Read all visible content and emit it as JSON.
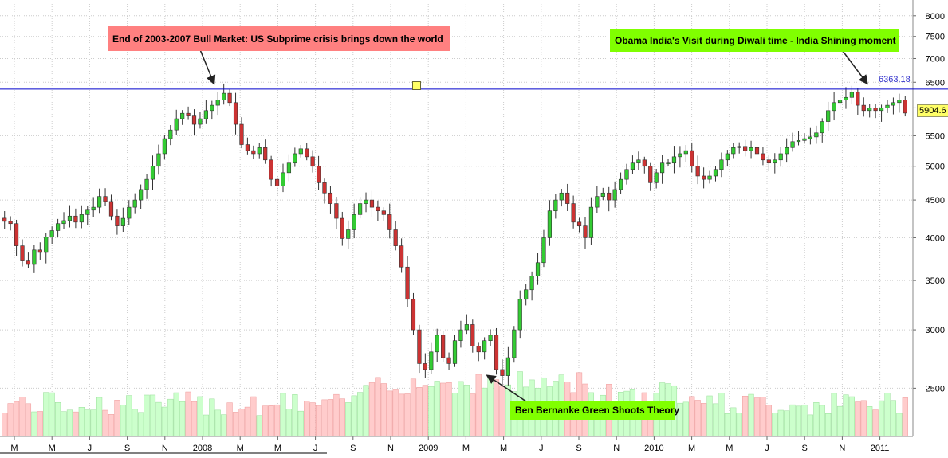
{
  "chart_data": {
    "type": "candlestick",
    "yscale": "log",
    "ylim": [
      2150,
      8300
    ],
    "y_ticks": [
      2500,
      3000,
      3500,
      4000,
      4500,
      5000,
      5500,
      6000,
      6500,
      7000,
      7500,
      8000
    ],
    "x_tick_labels": [
      "M",
      "M",
      "J",
      "S",
      "N",
      "2008",
      "M",
      "M",
      "J",
      "S",
      "N",
      "2009",
      "M",
      "M",
      "J",
      "S",
      "N",
      "2010",
      "M",
      "M",
      "J",
      "S",
      "N",
      "2011"
    ],
    "horizontal_level": {
      "value": 6363.18,
      "label": "6363.18",
      "color": "#0000cc"
    },
    "last_price": "5904.6",
    "annotations": [
      {
        "text": "End of 2003-2007 Bull Market: US Subprime crisis brings down the world",
        "bg": "#ff8080"
      },
      {
        "text": "Obama India's Visit during Diwali time - India Shining moment",
        "bg": "#80ff00"
      },
      {
        "text": "Ben Bernanke Green Shoots Theory",
        "bg": "#80ff00"
      }
    ],
    "colors": {
      "up": "#33cc33",
      "down": "#cc3333",
      "vol_up": "#ccffcc",
      "vol_down": "#ffcccc",
      "grid": "#cccccc"
    },
    "weekly_closes": [
      4210,
      4180,
      3900,
      3720,
      3680,
      3850,
      3820,
      4010,
      4090,
      4180,
      4220,
      4280,
      4200,
      4300,
      4360,
      4400,
      4550,
      4480,
      4280,
      4150,
      4250,
      4400,
      4500,
      4650,
      4800,
      5000,
      5200,
      5450,
      5600,
      5800,
      5900,
      5850,
      5700,
      5800,
      5950,
      6050,
      6150,
      6280,
      6100,
      5700,
      5350,
      5250,
      5200,
      5300,
      5100,
      4800,
      4700,
      4900,
      5050,
      5200,
      5280,
      5150,
      5000,
      4750,
      4600,
      4450,
      4250,
      3990,
      4100,
      4300,
      4450,
      4500,
      4400,
      4350,
      4300,
      4100,
      3900,
      3650,
      3300,
      3000,
      2700,
      2650,
      2800,
      2950,
      2750,
      2700,
      2900,
      3000,
      3050,
      2850,
      2800,
      2900,
      2950,
      2650,
      2600,
      2750,
      3000,
      3300,
      3400,
      3550,
      3700,
      4000,
      4350,
      4500,
      4600,
      4450,
      4200,
      4150,
      4000,
      4400,
      4550,
      4600,
      4500,
      4650,
      4800,
      4950,
      5050,
      5100,
      5000,
      4750,
      4900,
      5050,
      5050,
      5150,
      5200,
      5250,
      5000,
      4850,
      4800,
      4850,
      4950,
      5100,
      5200,
      5300,
      5320,
      5250,
      5300,
      5200,
      5100,
      5050,
      5100,
      5200,
      5300,
      5400,
      5420,
      5450,
      5480,
      5550,
      5750,
      5950,
      6100,
      6150,
      6200,
      6300,
      6050,
      5950,
      6000,
      5950,
      6000,
      6050,
      6100,
      6150,
      5904.6
    ]
  }
}
